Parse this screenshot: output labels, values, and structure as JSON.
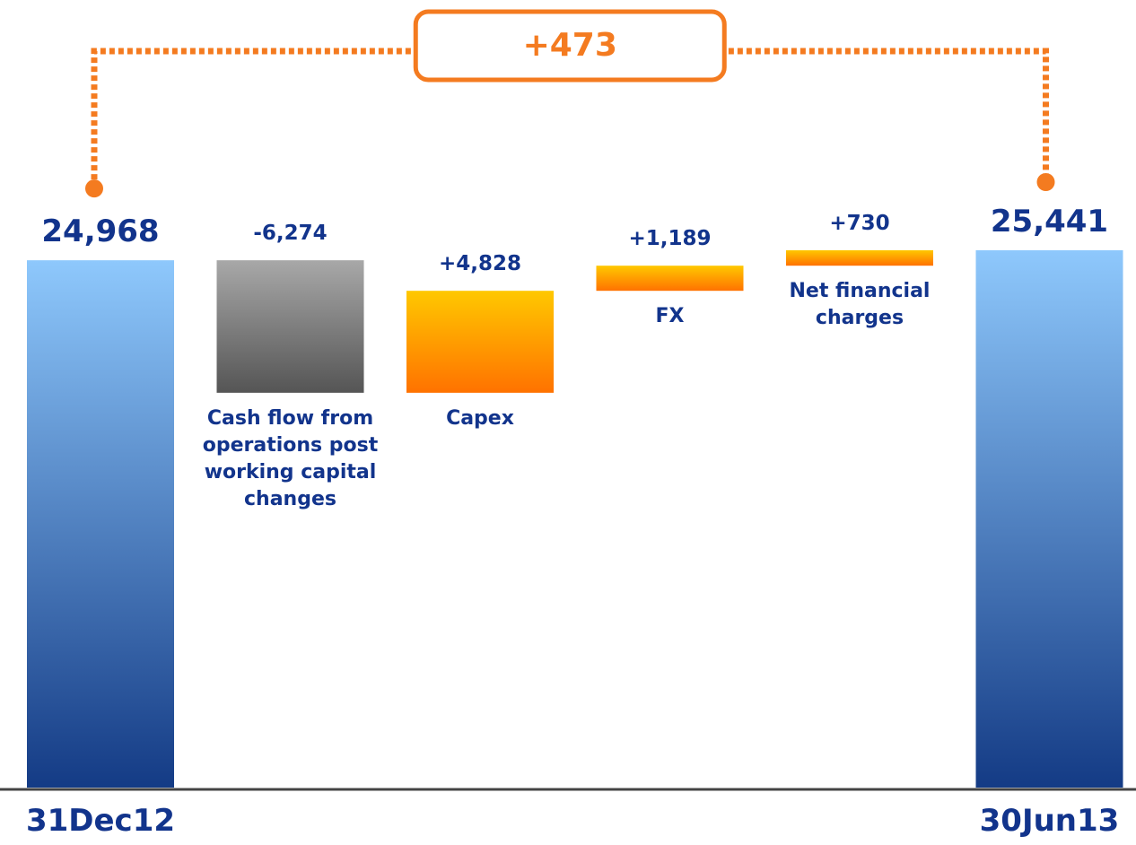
{
  "chart_data": {
    "type": "waterfall",
    "categories": [
      "31Dec12",
      "Cash flow from operations post working capital changes",
      "Capex",
      "FX",
      "Net financial charges",
      "30Jun13"
    ],
    "values": [
      24968,
      -6274,
      4828,
      1189,
      730,
      25441
    ],
    "value_labels": [
      "24,968",
      "-6,274",
      "+4,828",
      "+1,189",
      "+730",
      "25,441"
    ],
    "measure": [
      "absolute",
      "relative",
      "relative",
      "relative",
      "relative",
      "absolute"
    ],
    "colors": {
      "absolute": [
        "#8ec8fc",
        "#143b85"
      ],
      "increase": [
        "#ffc800",
        "#ff7200"
      ],
      "decrease": [
        "#a8a8a8",
        "#555555"
      ]
    },
    "difference": {
      "value": 473,
      "label": "+473"
    },
    "difference_color": "#f47b20"
  }
}
